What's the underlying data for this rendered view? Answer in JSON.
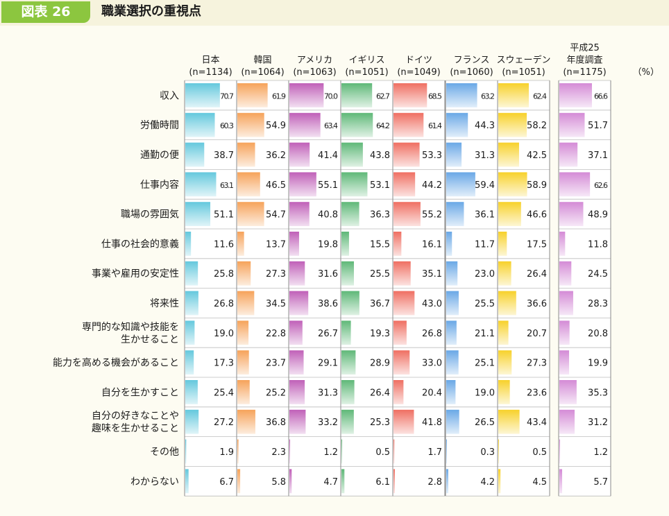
{
  "figure": {
    "badge": "図表 26",
    "title": "職業選択の重視点"
  },
  "chart_data": {
    "type": "bar",
    "title": "職業選択の重視点",
    "unit": "（%）",
    "categories": [
      "収入",
      "労働時間",
      "通勤の便",
      "仕事内容",
      "職場の雰囲気",
      "仕事の社会的意義",
      "事業や雇用の安定性",
      "将来性",
      "専門的な知識や技能を\n生かせること",
      "能力を高める機会があること",
      "自分を生かすこと",
      "自分の好きなことや\n趣味を生かせること",
      "その他",
      "わからない"
    ],
    "series": [
      {
        "name": "日本",
        "sample": "(n=1134)",
        "color": "#64c8dd",
        "values": [
          70.7,
          60.3,
          38.7,
          63.1,
          51.1,
          11.6,
          25.8,
          26.8,
          19.0,
          17.3,
          25.4,
          27.2,
          1.9,
          6.7
        ]
      },
      {
        "name": "韓国",
        "sample": "(n=1064)",
        "color": "#f6a35a",
        "values": [
          61.9,
          54.9,
          36.2,
          46.5,
          54.7,
          13.7,
          27.3,
          34.5,
          22.8,
          23.7,
          25.2,
          36.8,
          2.3,
          5.8
        ]
      },
      {
        "name": "アメリカ",
        "sample": "(n=1063)",
        "color": "#c060b8",
        "values": [
          70.0,
          63.4,
          41.4,
          55.1,
          40.8,
          19.8,
          31.6,
          38.6,
          26.7,
          29.1,
          31.3,
          33.2,
          1.2,
          4.7
        ]
      },
      {
        "name": "イギリス",
        "sample": "(n=1051)",
        "color": "#5fb878",
        "values": [
          62.7,
          64.2,
          43.8,
          53.1,
          36.3,
          15.5,
          25.5,
          36.7,
          19.3,
          28.9,
          26.4,
          25.3,
          0.5,
          6.1
        ]
      },
      {
        "name": "ドイツ",
        "sample": "(n=1049)",
        "color": "#ef6f62",
        "values": [
          68.5,
          61.4,
          53.3,
          44.2,
          55.2,
          16.1,
          35.1,
          43.0,
          26.8,
          33.0,
          20.4,
          41.8,
          1.7,
          2.8
        ]
      },
      {
        "name": "フランス",
        "sample": "(n=1060)",
        "color": "#6aa8e6",
        "values": [
          63.2,
          44.3,
          31.3,
          59.4,
          36.1,
          11.7,
          23.0,
          25.5,
          21.1,
          25.1,
          19.0,
          26.5,
          0.3,
          4.2
        ]
      },
      {
        "name": "スウェーデン",
        "sample": "(n=1051)",
        "color": "#f7d12a",
        "values": [
          62.4,
          58.2,
          42.5,
          58.9,
          46.6,
          17.5,
          26.4,
          36.6,
          20.7,
          27.3,
          23.6,
          43.4,
          0.5,
          4.5
        ]
      },
      {
        "name": "平成25\n年度調査",
        "sample": "(n=1175)",
        "color": "#d48bd6",
        "values": [
          66.6,
          51.7,
          37.1,
          62.6,
          48.9,
          11.8,
          24.5,
          28.3,
          20.8,
          19.9,
          35.3,
          31.2,
          1.2,
          5.7
        ]
      }
    ],
    "xlim": [
      0,
      100
    ],
    "grid": false,
    "legend": "none"
  }
}
